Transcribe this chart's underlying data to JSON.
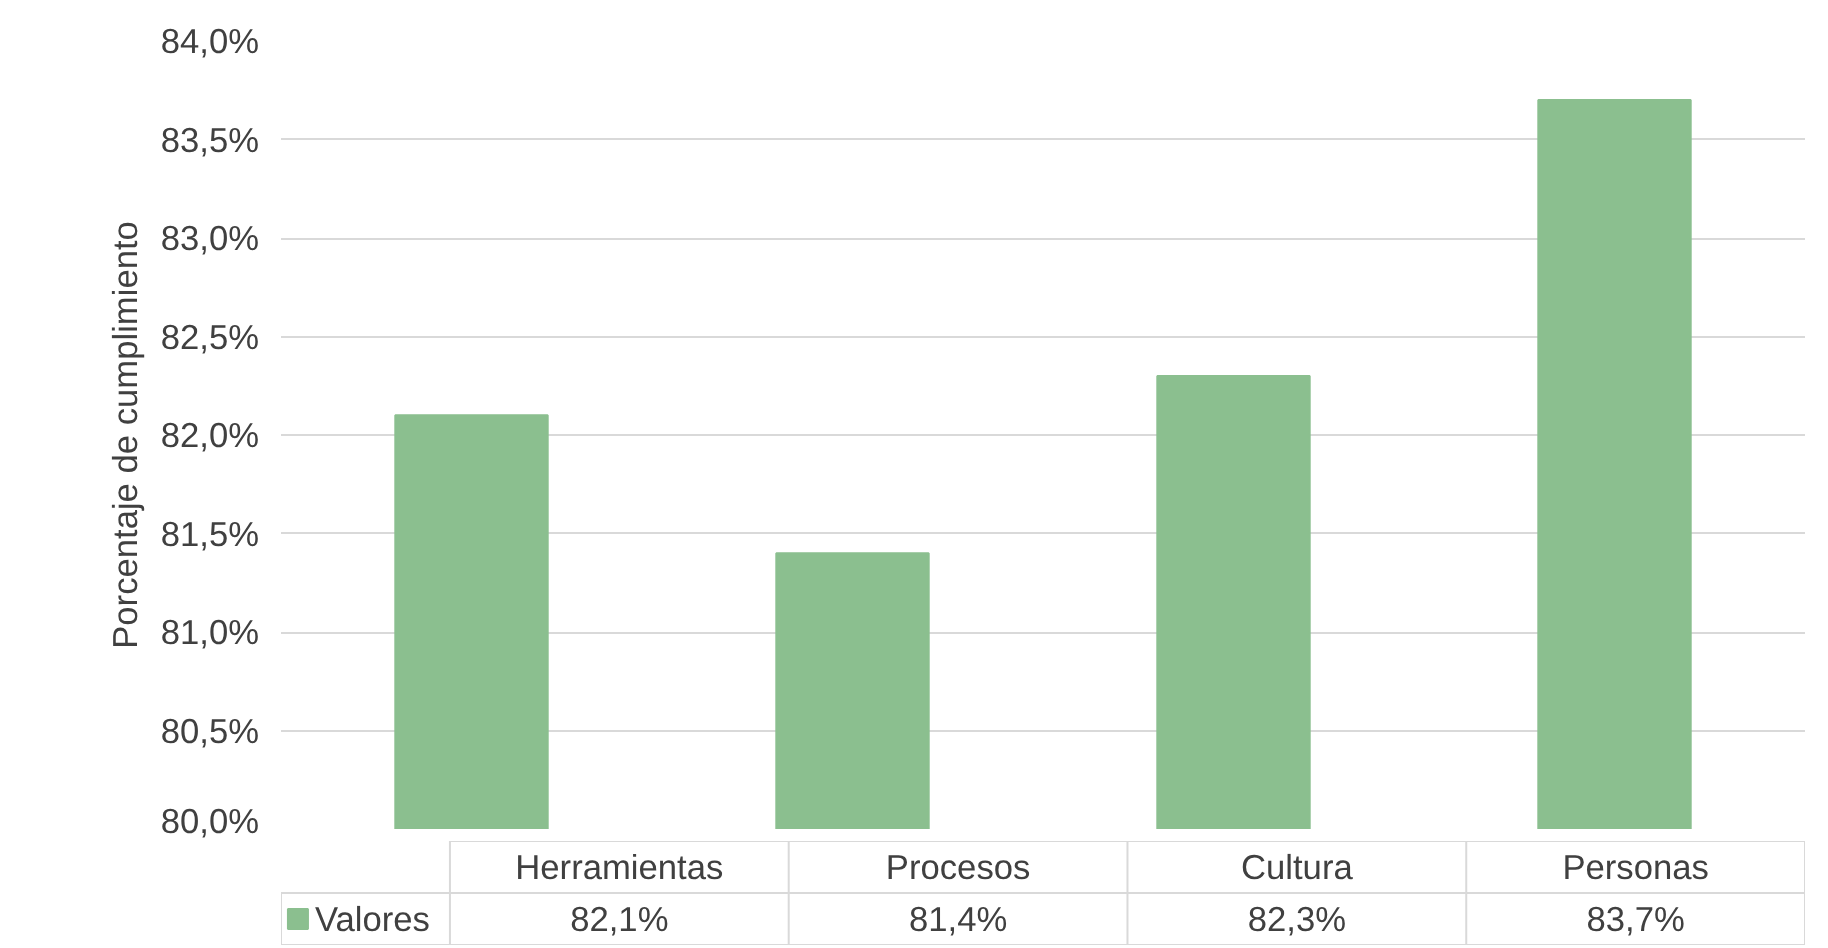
{
  "chart_data": {
    "type": "bar",
    "ylabel": "Porcentaje de cumplimiento",
    "categories": [
      "Herramientas",
      "Procesos",
      "Cultura",
      "Personas"
    ],
    "series": [
      {
        "name": "Valores",
        "color": "#8bbf8f",
        "values": [
          82.1,
          81.4,
          82.3,
          83.7
        ],
        "value_labels": [
          "82,1%",
          "81,4%",
          "82,3%",
          "83,7%"
        ]
      }
    ],
    "ylim": [
      80,
      84
    ],
    "yticks": [
      {
        "value": 80,
        "label": "80,0%"
      },
      {
        "value": 80.5,
        "label": "80,5%"
      },
      {
        "value": 81,
        "label": "81,0%"
      },
      {
        "value": 81.5,
        "label": "81,5%"
      },
      {
        "value": 82,
        "label": "82,0%"
      },
      {
        "value": 82.5,
        "label": "82,5%"
      },
      {
        "value": 83,
        "label": "83,0%"
      },
      {
        "value": 83.5,
        "label": "83,5%"
      },
      {
        "value": 84,
        "label": "84,0%"
      }
    ],
    "grid": "y",
    "legend": "bottom"
  }
}
